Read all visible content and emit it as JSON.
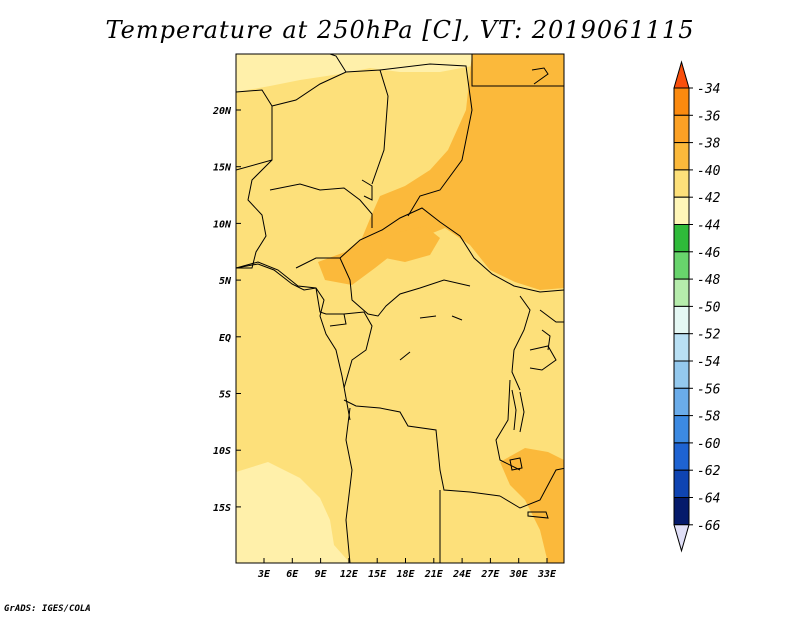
{
  "title": "Temperature at 250hPa [C], VT: 2019061115",
  "map": {
    "lat_ticks": [
      "20N",
      "15N",
      "10N",
      "5N",
      "EQ",
      "5S",
      "10S",
      "15S"
    ],
    "lon_ticks": [
      "3E",
      "6E",
      "9E",
      "12E",
      "15E",
      "18E",
      "21E",
      "24E",
      "27E",
      "30E",
      "33E"
    ],
    "regions": [
      {
        "name": "background",
        "color": "#fde07a"
      },
      {
        "name": "light-north",
        "color": "#fff0aa"
      },
      {
        "name": "orange-east",
        "color": "#fbb93b"
      },
      {
        "name": "orange-central",
        "color": "#fbb93b"
      },
      {
        "name": "light-southwest",
        "color": "#fff0aa"
      },
      {
        "name": "orange-southeast",
        "color": "#fbb93b"
      }
    ]
  },
  "colorbar": {
    "labels": [
      "-34",
      "-36",
      "-38",
      "-40",
      "-42",
      "-44",
      "-46",
      "-48",
      "-50",
      "-52",
      "-54",
      "-56",
      "-58",
      "-60",
      "-62",
      "-64",
      "-66"
    ],
    "colors": [
      "#f94f0c",
      "#fb8a0f",
      "#fca125",
      "#fbb93b",
      "#fde07a",
      "#fff6b8",
      "#2fbb3a",
      "#68d46c",
      "#b6ecac",
      "#e5f8f4",
      "#b9e0f4",
      "#94c9ee",
      "#6aacea",
      "#3c8ae2",
      "#1e63d2",
      "#0f44b2",
      "#051a6b",
      "#e0dff7"
    ]
  },
  "credit": "GrADS: IGES/COLA"
}
